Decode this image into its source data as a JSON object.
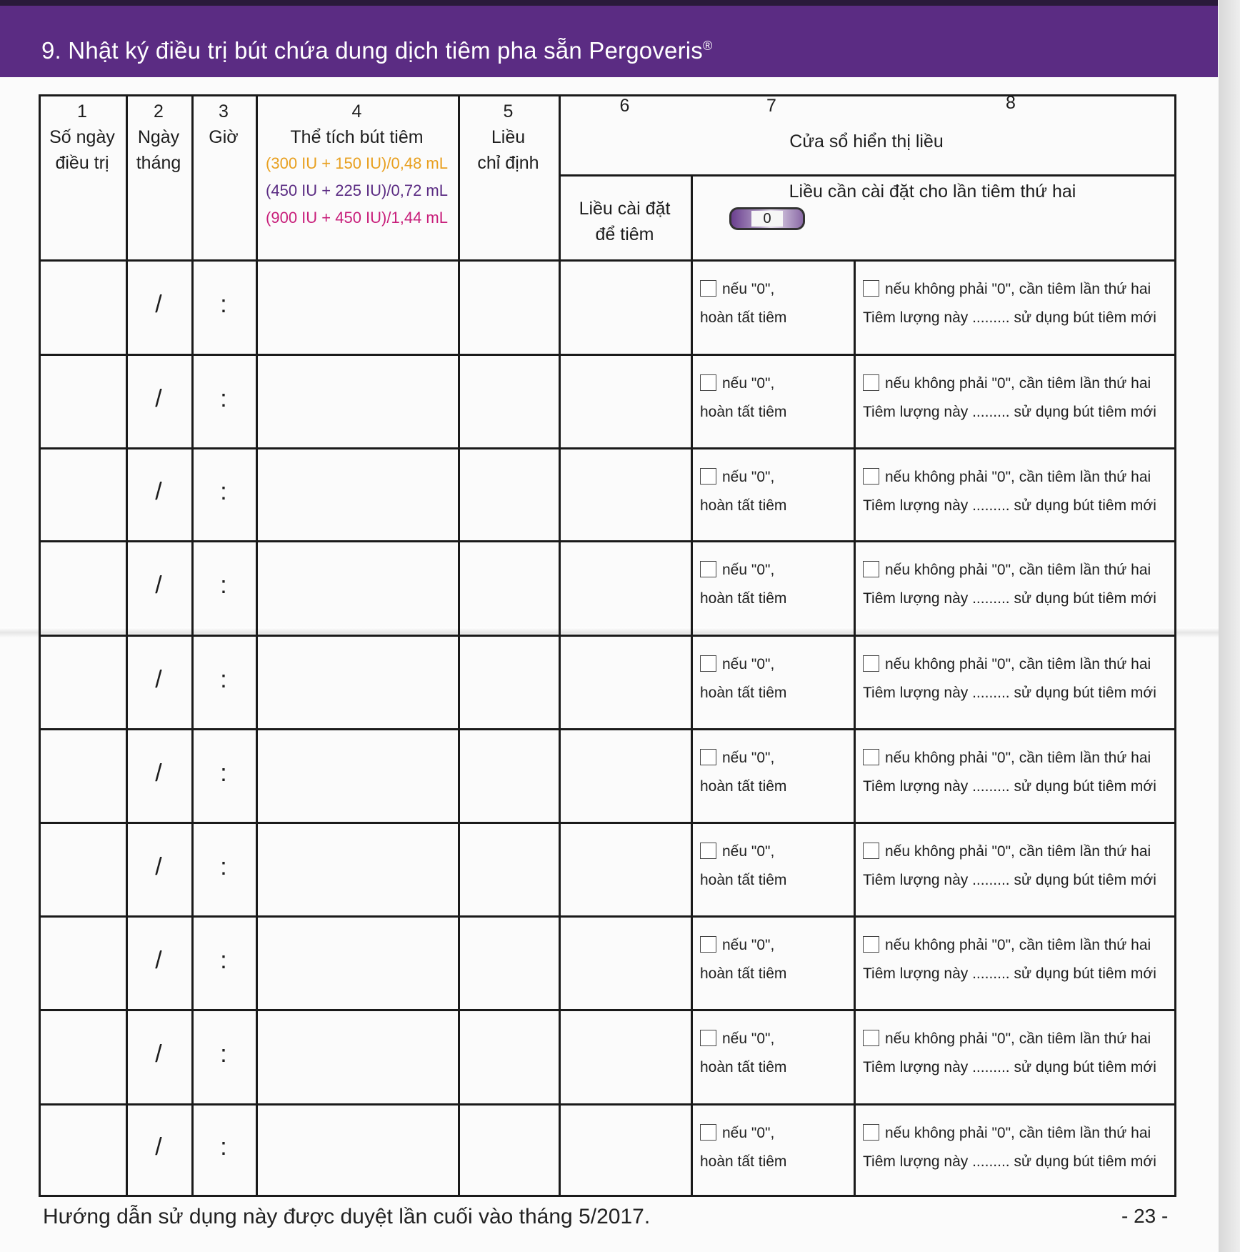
{
  "header": {
    "title": "9. Nhật ký điều trị bút chứa dung dịch tiêm pha sẵn Pergoveris",
    "title_mark": "®"
  },
  "columns": {
    "c1": {
      "num": "1",
      "label1": "Số ngày",
      "label2": "điều trị"
    },
    "c2": {
      "num": "2",
      "label1": "Ngày",
      "label2": "tháng"
    },
    "c3": {
      "num": "3",
      "label1": "Giờ"
    },
    "c4": {
      "num": "4",
      "label1": "Thể tích bút tiêm",
      "opt1": "(300 IU + 150 IU)/0,48 mL",
      "opt2": "(450 IU + 225 IU)/0,72 mL",
      "opt3": "(900 IU + 450 IU)/1,44 mL"
    },
    "c5": {
      "num": "5",
      "label1": "Liều",
      "label2": "chỉ định"
    },
    "c6": {
      "num": "6",
      "label1": "Liều cài đặt",
      "label2": "để tiêm"
    },
    "c7": {
      "num": "7"
    },
    "c8": {
      "num": "8"
    },
    "dose_window": "Cửa sổ hiển thị liều",
    "second_dose": "Liều cần cài đặt cho lần tiêm thứ hai",
    "dose_display_value": "0"
  },
  "colors": {
    "banner": "#5b2c83",
    "orange": "#e8a020",
    "purple": "#5b2c83",
    "pink": "#c81e7a"
  },
  "rows": [
    {
      "date_sep": "/",
      "time_sep": ":",
      "c7a": "nếu \"0\",",
      "c7b": "hoàn tất tiêm",
      "c8a": "nếu không phải \"0\", cần tiêm lần thứ hai",
      "c8b": "Tiêm lượng này ......... sử dụng bút tiêm mới"
    },
    {
      "date_sep": "/",
      "time_sep": ":",
      "c7a": "nếu \"0\",",
      "c7b": "hoàn tất tiêm",
      "c8a": "nếu không phải \"0\", cần tiêm lần thứ hai",
      "c8b": "Tiêm lượng này ......... sử dụng bút tiêm mới"
    },
    {
      "date_sep": "/",
      "time_sep": ":",
      "c7a": "nếu \"0\",",
      "c7b": "hoàn tất tiêm",
      "c8a": "nếu không phải \"0\", cần tiêm lần thứ hai",
      "c8b": "Tiêm lượng này ......... sử dụng bút tiêm mới"
    },
    {
      "date_sep": "/",
      "time_sep": ":",
      "c7a": "nếu \"0\",",
      "c7b": "hoàn tất tiêm",
      "c8a": "nếu không phải \"0\", cần tiêm lần thứ hai",
      "c8b": "Tiêm lượng này ......... sử dụng bút tiêm mới"
    },
    {
      "date_sep": "/",
      "time_sep": ":",
      "c7a": "nếu \"0\",",
      "c7b": "hoàn tất tiêm",
      "c8a": "nếu không phải \"0\", cần tiêm lần thứ hai",
      "c8b": "Tiêm lượng này ......... sử dụng bút tiêm mới"
    },
    {
      "date_sep": "/",
      "time_sep": ":",
      "c7a": "nếu \"0\",",
      "c7b": "hoàn tất tiêm",
      "c8a": "nếu không phải \"0\", cần tiêm lần thứ hai",
      "c8b": "Tiêm lượng này ......... sử dụng bút tiêm mới"
    },
    {
      "date_sep": "/",
      "time_sep": ":",
      "c7a": "nếu \"0\",",
      "c7b": "hoàn tất tiêm",
      "c8a": "nếu không phải \"0\", cần tiêm lần thứ hai",
      "c8b": "Tiêm lượng này ......... sử dụng bút tiêm mới"
    },
    {
      "date_sep": "/",
      "time_sep": ":",
      "c7a": "nếu \"0\",",
      "c7b": "hoàn tất tiêm",
      "c8a": "nếu không phải \"0\", cần tiêm lần thứ hai",
      "c8b": "Tiêm lượng này ......... sử dụng bút tiêm mới"
    },
    {
      "date_sep": "/",
      "time_sep": ":",
      "c7a": "nếu \"0\",",
      "c7b": "hoàn tất tiêm",
      "c8a": "nếu không phải \"0\", cần tiêm lần thứ hai",
      "c8b": "Tiêm lượng này ......... sử dụng bút tiêm mới"
    },
    {
      "date_sep": "/",
      "time_sep": ":",
      "c7a": "nếu \"0\",",
      "c7b": "hoàn tất tiêm",
      "c8a": "nếu không phải \"0\", cần tiêm lần thứ hai",
      "c8b": "Tiêm lượng này ......... sử dụng bút tiêm mới"
    }
  ],
  "footer": {
    "note": "Hướng dẫn sử dụng này được duyệt lần cuối vào tháng 5/2017.",
    "page": "- 23 -"
  }
}
